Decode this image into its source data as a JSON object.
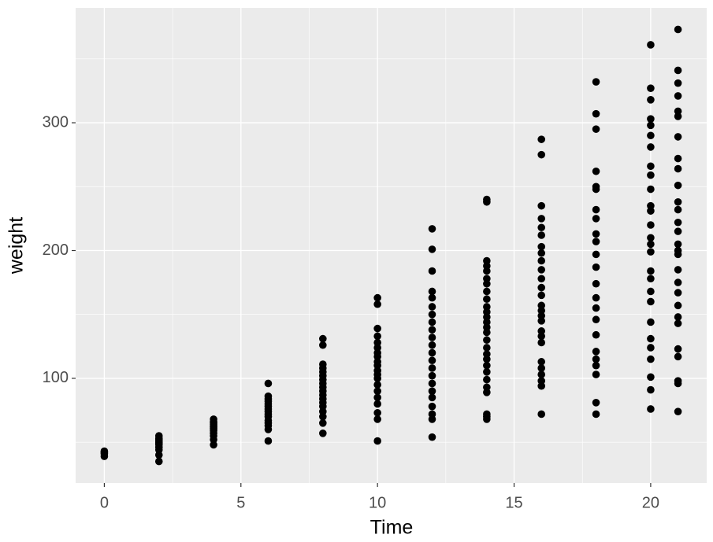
{
  "chart_data": {
    "type": "scatter",
    "x_label": "Time",
    "y_label": "weight",
    "x": [
      0,
      0,
      0,
      0,
      2,
      2,
      2,
      2,
      2,
      2,
      2,
      2,
      2,
      2,
      2,
      4,
      4,
      4,
      4,
      4,
      4,
      4,
      4,
      4,
      4,
      4,
      4,
      4,
      6,
      6,
      6,
      6,
      6,
      6,
      6,
      6,
      6,
      6,
      6,
      6,
      6,
      6,
      6,
      8,
      8,
      8,
      8,
      8,
      8,
      8,
      8,
      8,
      8,
      8,
      8,
      8,
      8,
      8,
      8,
      8,
      8,
      10,
      10,
      10,
      10,
      10,
      10,
      10,
      10,
      10,
      10,
      10,
      10,
      10,
      10,
      10,
      10,
      10,
      10,
      10,
      10,
      12,
      12,
      12,
      12,
      12,
      12,
      12,
      12,
      12,
      12,
      12,
      12,
      12,
      12,
      12,
      12,
      12,
      12,
      12,
      12,
      12,
      12,
      14,
      14,
      14,
      14,
      14,
      14,
      14,
      14,
      14,
      14,
      14,
      14,
      14,
      14,
      14,
      14,
      14,
      14,
      14,
      14,
      14,
      14,
      14,
      14,
      14,
      14,
      14,
      16,
      16,
      16,
      16,
      16,
      16,
      16,
      16,
      16,
      16,
      16,
      16,
      16,
      16,
      16,
      16,
      16,
      16,
      16,
      16,
      16,
      16,
      16,
      16,
      16,
      16,
      18,
      18,
      18,
      18,
      18,
      18,
      18,
      18,
      18,
      18,
      18,
      18,
      18,
      18,
      18,
      18,
      18,
      18,
      18,
      18,
      18,
      18,
      18,
      20,
      20,
      20,
      20,
      20,
      20,
      20,
      20,
      20,
      20,
      20,
      20,
      20,
      20,
      20,
      20,
      20,
      20,
      20,
      20,
      20,
      20,
      20,
      20,
      20,
      20,
      20,
      21,
      21,
      21,
      21,
      21,
      21,
      21,
      21,
      21,
      21,
      21,
      21,
      21,
      21,
      21,
      21,
      21,
      21,
      21,
      21,
      21,
      21,
      21,
      21,
      21,
      21,
      21,
      21
    ],
    "values": [
      39,
      41,
      42,
      43,
      35,
      40,
      44,
      46,
      48,
      49,
      50,
      51,
      52,
      53,
      55,
      48,
      52,
      55,
      57,
      59,
      60,
      61,
      62,
      63,
      64,
      65,
      66,
      68,
      51,
      60,
      63,
      65,
      67,
      70,
      72,
      74,
      76,
      78,
      80,
      82,
      84,
      86,
      96,
      57,
      65,
      70,
      74,
      78,
      81,
      84,
      87,
      90,
      93,
      96,
      99,
      102,
      105,
      108,
      111,
      126,
      131,
      51,
      68,
      73,
      80,
      85,
      90,
      95,
      100,
      103,
      106,
      110,
      113,
      117,
      120,
      124,
      128,
      133,
      139,
      158,
      163,
      54,
      68,
      72,
      78,
      85,
      90,
      96,
      102,
      108,
      114,
      120,
      126,
      132,
      138,
      144,
      150,
      156,
      163,
      168,
      184,
      201,
      217,
      68,
      70,
      72,
      89,
      93,
      99,
      105,
      110,
      115,
      119,
      124,
      130,
      136,
      140,
      144,
      148,
      152,
      156,
      162,
      168,
      174,
      178,
      184,
      188,
      192,
      238,
      240,
      72,
      94,
      98,
      103,
      108,
      113,
      128,
      133,
      137,
      145,
      149,
      153,
      157,
      165,
      171,
      178,
      185,
      192,
      198,
      203,
      212,
      218,
      225,
      235,
      275,
      287,
      72,
      81,
      103,
      110,
      115,
      121,
      134,
      146,
      155,
      163,
      174,
      187,
      197,
      207,
      213,
      225,
      232,
      248,
      250,
      262,
      295,
      307,
      332,
      76,
      91,
      101,
      115,
      124,
      131,
      144,
      160,
      168,
      178,
      184,
      199,
      205,
      210,
      220,
      231,
      235,
      248,
      259,
      266,
      281,
      290,
      298,
      303,
      318,
      327,
      361,
      74,
      96,
      98,
      117,
      123,
      143,
      148,
      157,
      167,
      175,
      185,
      197,
      200,
      205,
      215,
      222,
      232,
      238,
      251,
      264,
      272,
      289,
      305,
      309,
      321,
      331,
      341,
      373
    ],
    "color": "#000000",
    "xlim": [
      -1.05,
      22.05
    ],
    "ylim": [
      18.1,
      389.9
    ],
    "xticks": [
      0,
      5,
      10,
      15,
      20
    ],
    "yticks": [
      100,
      200,
      300
    ],
    "minor_xticks": [
      2.5,
      7.5,
      12.5,
      17.5
    ],
    "minor_yticks": [
      50,
      150,
      250,
      350
    ],
    "grid": true
  }
}
